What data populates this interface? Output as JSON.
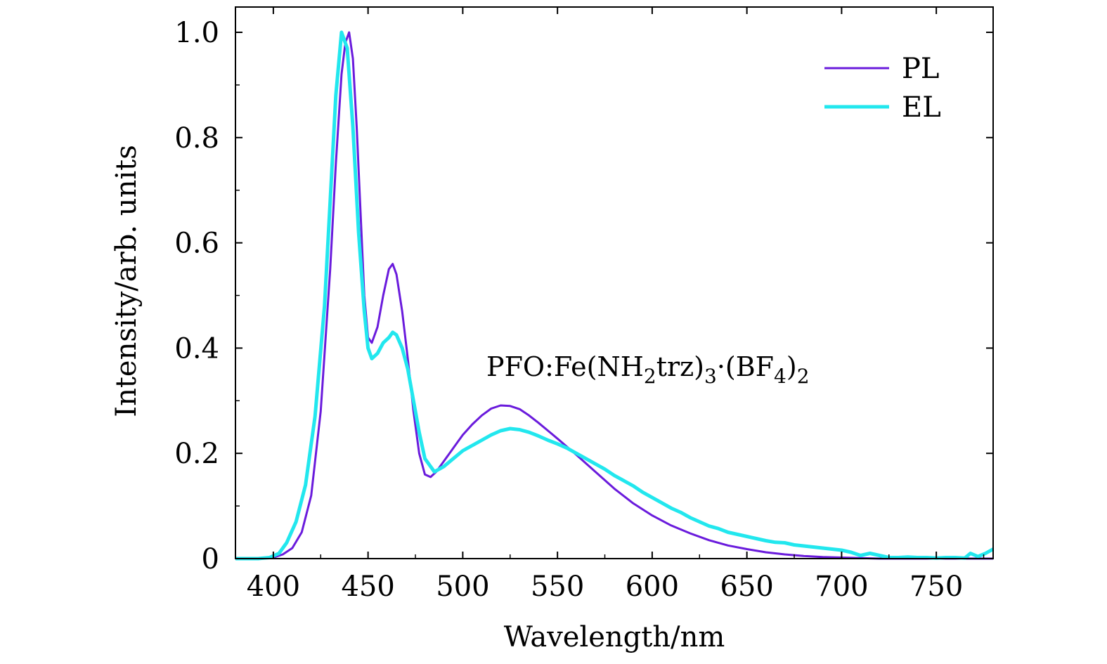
{
  "chart_data": {
    "type": "line",
    "xlabel": "Wavelength/nm",
    "ylabel": "Intensity/arb. units",
    "xlim": [
      380,
      780
    ],
    "ylim": [
      0,
      1.05
    ],
    "xticks": [
      400,
      450,
      500,
      550,
      600,
      650,
      700,
      750
    ],
    "xtick_labels": [
      "400",
      "450",
      "500",
      "550",
      "600",
      "650",
      "700",
      "750"
    ],
    "yticks": [
      0,
      0.2,
      0.4,
      0.6,
      0.8,
      1.0
    ],
    "ytick_labels": [
      "0",
      "0.2",
      "0.4",
      "0.6",
      "0.8",
      "1.0"
    ],
    "grid": false,
    "legend": "top-right",
    "annotation": {
      "parts": [
        "PFO:Fe(NH",
        "2",
        "trz)",
        "3",
        "·(BF",
        "4",
        ")",
        "2"
      ],
      "x": 508,
      "y": 0.335
    },
    "series": [
      {
        "name": "PL",
        "color": "#6a1bdc",
        "x": [
          380,
          395,
          400,
          405,
          410,
          415,
          420,
          425,
          430,
          433,
          436,
          438,
          440,
          442,
          444,
          446,
          448,
          450,
          452,
          455,
          458,
          461,
          463,
          465,
          468,
          471,
          474,
          477,
          480,
          483,
          486,
          490,
          495,
          500,
          505,
          510,
          515,
          520,
          525,
          530,
          535,
          540,
          545,
          550,
          560,
          570,
          580,
          590,
          600,
          610,
          620,
          630,
          640,
          650,
          660,
          670,
          680,
          690,
          700,
          710,
          720,
          780
        ],
        "y": [
          0,
          0,
          0.002,
          0.008,
          0.02,
          0.05,
          0.12,
          0.28,
          0.55,
          0.75,
          0.92,
          0.98,
          1.0,
          0.95,
          0.82,
          0.66,
          0.5,
          0.42,
          0.41,
          0.44,
          0.5,
          0.55,
          0.56,
          0.54,
          0.47,
          0.38,
          0.28,
          0.2,
          0.16,
          0.155,
          0.165,
          0.185,
          0.21,
          0.235,
          0.255,
          0.272,
          0.285,
          0.291,
          0.29,
          0.284,
          0.272,
          0.258,
          0.243,
          0.228,
          0.197,
          0.165,
          0.133,
          0.105,
          0.082,
          0.063,
          0.048,
          0.035,
          0.025,
          0.018,
          0.012,
          0.008,
          0.005,
          0.003,
          0.002,
          0.001,
          0,
          0
        ]
      },
      {
        "name": "EL",
        "color": "#22e7ee",
        "x": [
          380,
          392,
          398,
          403,
          407,
          412,
          417,
          422,
          427,
          430,
          433,
          436,
          439,
          442,
          445,
          448,
          450,
          452,
          455,
          458,
          461,
          463,
          465,
          468,
          471,
          474,
          477,
          480,
          485,
          490,
          495,
          500,
          505,
          510,
          515,
          520,
          525,
          530,
          535,
          540,
          545,
          550,
          555,
          560,
          565,
          570,
          575,
          580,
          585,
          590,
          595,
          600,
          605,
          610,
          615,
          620,
          625,
          630,
          635,
          640,
          645,
          650,
          655,
          660,
          665,
          670,
          675,
          680,
          685,
          690,
          695,
          700,
          705,
          710,
          715,
          720,
          725,
          730,
          735,
          740,
          745,
          750,
          755,
          760,
          765,
          768,
          772,
          776,
          780
        ],
        "y": [
          0,
          0,
          0.002,
          0.01,
          0.03,
          0.07,
          0.14,
          0.27,
          0.48,
          0.68,
          0.88,
          1.0,
          0.97,
          0.82,
          0.62,
          0.47,
          0.4,
          0.38,
          0.39,
          0.41,
          0.42,
          0.43,
          0.425,
          0.4,
          0.36,
          0.3,
          0.24,
          0.19,
          0.165,
          0.175,
          0.19,
          0.205,
          0.215,
          0.225,
          0.235,
          0.243,
          0.247,
          0.245,
          0.24,
          0.233,
          0.225,
          0.218,
          0.21,
          0.2,
          0.19,
          0.18,
          0.17,
          0.158,
          0.148,
          0.138,
          0.126,
          0.116,
          0.106,
          0.096,
          0.088,
          0.078,
          0.07,
          0.062,
          0.057,
          0.05,
          0.046,
          0.042,
          0.038,
          0.034,
          0.031,
          0.03,
          0.026,
          0.024,
          0.022,
          0.02,
          0.018,
          0.016,
          0.012,
          0.006,
          0.01,
          0.006,
          0.002,
          0.002,
          0.003,
          0.002,
          0.002,
          0.001,
          0.002,
          0.002,
          0.001,
          0.01,
          0.004,
          0.01,
          0.018
        ]
      }
    ]
  }
}
